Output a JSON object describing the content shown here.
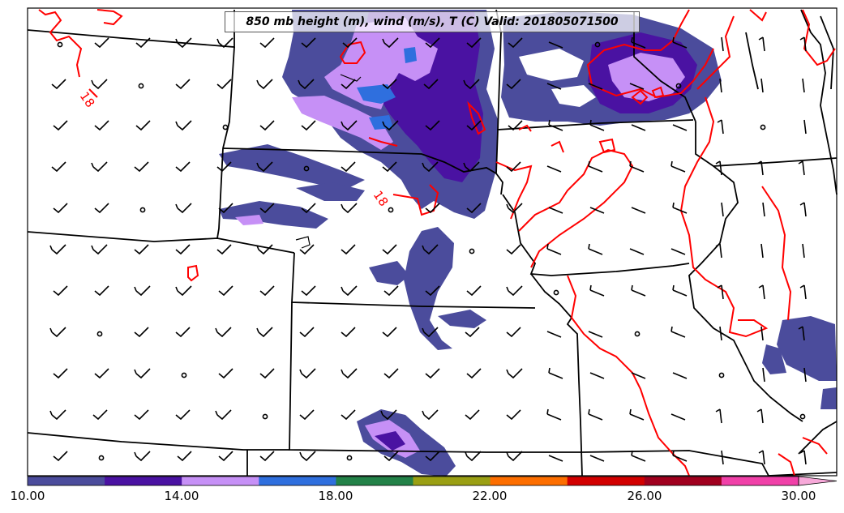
{
  "title": "850 mb height (m), wind (m/s), T (C) Valid: 201805071500",
  "contour_labels": [
    "18",
    "18"
  ],
  "colorbar": {
    "colors": [
      "#4b4c9c",
      "#4a12a2",
      "#c690f6",
      "#2f6fde",
      "#238248",
      "#9a9f13",
      "#fd6e00",
      "#d20000",
      "#a0001e",
      "#f040a8"
    ],
    "extend_color": "#f7a9d9",
    "ticks": [
      "10.00",
      "14.00",
      "18.00",
      "22.00",
      "26.00",
      "30.00"
    ]
  },
  "colors": {
    "contour": "#ff0000",
    "boundary": "#000000",
    "shade_light": "#c690f6",
    "shade_mid": "#4b4c9c",
    "shade_dark": "#4a12a2",
    "shade_blue": "#2f6fde"
  }
}
